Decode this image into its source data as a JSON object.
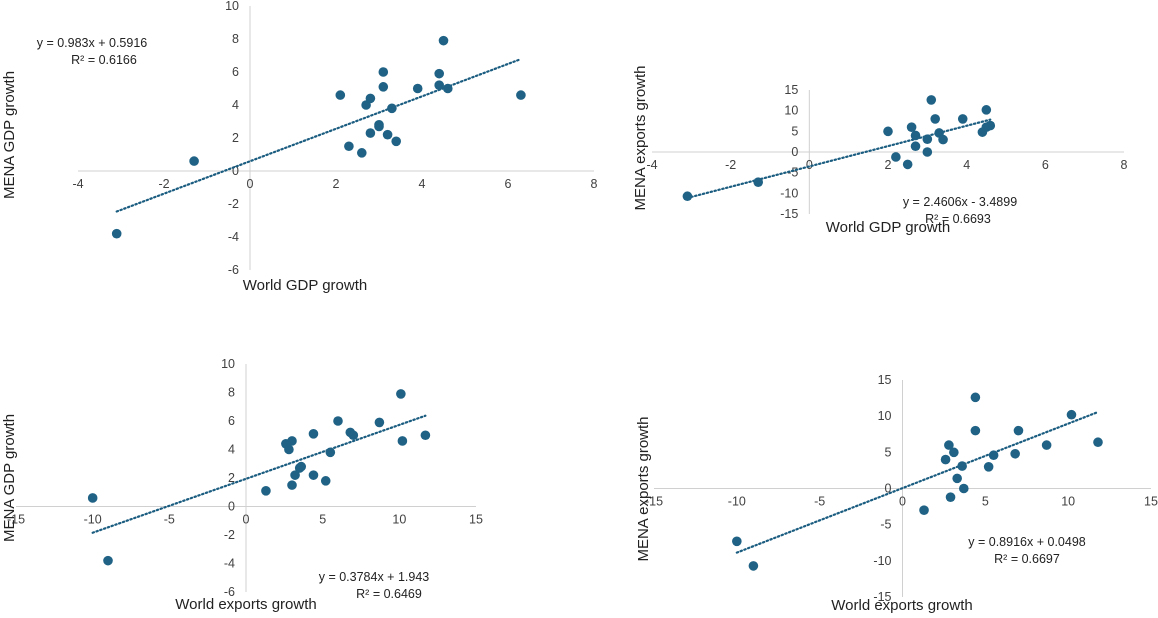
{
  "colors": {
    "marker": "#1f6285",
    "trend": "#1b5d80",
    "axis": "#d0d0d0",
    "text": "#404040"
  },
  "chart_data": [
    {
      "type": "scatter",
      "xlabel": "World GDP growth",
      "ylabel": "MENA GDP growth",
      "xlim": [
        -4,
        8
      ],
      "ylim": [
        -6,
        10
      ],
      "xticks": [
        -4,
        -2,
        0,
        2,
        4,
        6,
        8
      ],
      "yticks": [
        -6,
        -4,
        -2,
        0,
        2,
        4,
        6,
        8,
        10
      ],
      "equation": "y = 0.983x + 0.5916",
      "r2": "R² = 0.6166",
      "trend": {
        "slope": 0.983,
        "intercept": 0.5916
      },
      "points": [
        [
          -3.1,
          -3.8
        ],
        [
          -1.3,
          0.6
        ],
        [
          2.1,
          4.6
        ],
        [
          2.3,
          1.5
        ],
        [
          2.6,
          1.1
        ],
        [
          2.7,
          4.0
        ],
        [
          2.8,
          4.4
        ],
        [
          2.8,
          2.3
        ],
        [
          3.0,
          2.8
        ],
        [
          3.0,
          2.7
        ],
        [
          3.1,
          6.0
        ],
        [
          3.1,
          5.1
        ],
        [
          3.2,
          2.2
        ],
        [
          3.3,
          3.8
        ],
        [
          3.4,
          1.8
        ],
        [
          3.9,
          5.0
        ],
        [
          4.4,
          5.2
        ],
        [
          4.4,
          5.9
        ],
        [
          4.5,
          7.9
        ],
        [
          4.6,
          5.0
        ],
        [
          6.3,
          4.6
        ]
      ]
    },
    {
      "type": "scatter",
      "xlabel": "World GDP growth",
      "ylabel": "MENA exports growth",
      "xlim": [
        -4,
        8
      ],
      "ylim": [
        -15,
        15
      ],
      "xticks": [
        -4,
        -2,
        0,
        2,
        4,
        6,
        8
      ],
      "yticks": [
        -15,
        -10,
        -5,
        0,
        5,
        10,
        15
      ],
      "equation": "y = 2.4606x - 3.4899",
      "r2": "R² = 0.6693",
      "trend": {
        "slope": 2.4606,
        "intercept": -3.4899
      },
      "points": [
        [
          -3.1,
          -10.7
        ],
        [
          -1.3,
          -7.3
        ],
        [
          2.0,
          5.0
        ],
        [
          2.2,
          -1.2
        ],
        [
          2.5,
          -3.0
        ],
        [
          2.6,
          6.0
        ],
        [
          2.7,
          1.4
        ],
        [
          2.7,
          4.0
        ],
        [
          3.0,
          3.1
        ],
        [
          3.0,
          0.0
        ],
        [
          3.1,
          12.6
        ],
        [
          3.2,
          8.0
        ],
        [
          3.3,
          4.6
        ],
        [
          3.4,
          3.0
        ],
        [
          3.9,
          8.0
        ],
        [
          4.4,
          4.8
        ],
        [
          4.5,
          10.2
        ],
        [
          4.5,
          6.0
        ],
        [
          4.6,
          6.4
        ]
      ]
    },
    {
      "type": "scatter",
      "xlabel": "World exports growth",
      "ylabel": "MENA GDP growth",
      "xlim": [
        -15,
        15
      ],
      "ylim": [
        -6,
        10
      ],
      "xticks": [
        -15,
        -10,
        -5,
        0,
        5,
        10,
        15
      ],
      "yticks": [
        -6,
        -4,
        -2,
        0,
        2,
        4,
        6,
        8,
        10
      ],
      "equation": "y = 0.3784x + 1.943",
      "r2": "R² = 0.6469",
      "trend": {
        "slope": 0.3784,
        "intercept": 1.943
      },
      "points": [
        [
          -10.0,
          0.6
        ],
        [
          -9.0,
          -3.8
        ],
        [
          1.3,
          1.1
        ],
        [
          2.6,
          4.4
        ],
        [
          2.8,
          4.0
        ],
        [
          3.0,
          4.6
        ],
        [
          3.0,
          1.5
        ],
        [
          3.2,
          2.2
        ],
        [
          3.5,
          2.7
        ],
        [
          3.6,
          2.8
        ],
        [
          4.4,
          5.1
        ],
        [
          4.4,
          2.2
        ],
        [
          5.2,
          1.8
        ],
        [
          5.5,
          3.8
        ],
        [
          6.0,
          6.0
        ],
        [
          6.8,
          5.2
        ],
        [
          7.0,
          5.0
        ],
        [
          8.7,
          5.9
        ],
        [
          10.1,
          7.9
        ],
        [
          10.2,
          4.6
        ],
        [
          11.7,
          5.0
        ]
      ]
    },
    {
      "type": "scatter",
      "xlabel": "World exports growth",
      "ylabel": "MENA exports growth",
      "xlim": [
        -15,
        15
      ],
      "ylim": [
        -15,
        15
      ],
      "xticks": [
        -15,
        -10,
        -5,
        0,
        5,
        10,
        15
      ],
      "yticks": [
        -15,
        -10,
        -5,
        0,
        5,
        10,
        15
      ],
      "equation": "y = 0.8916x + 0.0498",
      "r2": "R² = 0.6697",
      "trend": {
        "slope": 0.8916,
        "intercept": 0.0498
      },
      "points": [
        [
          -10.0,
          -7.3
        ],
        [
          -9.0,
          -10.7
        ],
        [
          1.3,
          -3.0
        ],
        [
          2.6,
          4.0
        ],
        [
          2.8,
          6.0
        ],
        [
          2.9,
          -1.2
        ],
        [
          3.1,
          5.0
        ],
        [
          3.3,
          1.4
        ],
        [
          3.6,
          3.1
        ],
        [
          3.7,
          0.0
        ],
        [
          4.4,
          12.6
        ],
        [
          4.4,
          8.0
        ],
        [
          5.2,
          3.0
        ],
        [
          5.5,
          4.6
        ],
        [
          6.8,
          4.8
        ],
        [
          7.0,
          8.0
        ],
        [
          8.7,
          6.0
        ],
        [
          10.2,
          10.2
        ],
        [
          11.8,
          6.4
        ]
      ]
    }
  ]
}
